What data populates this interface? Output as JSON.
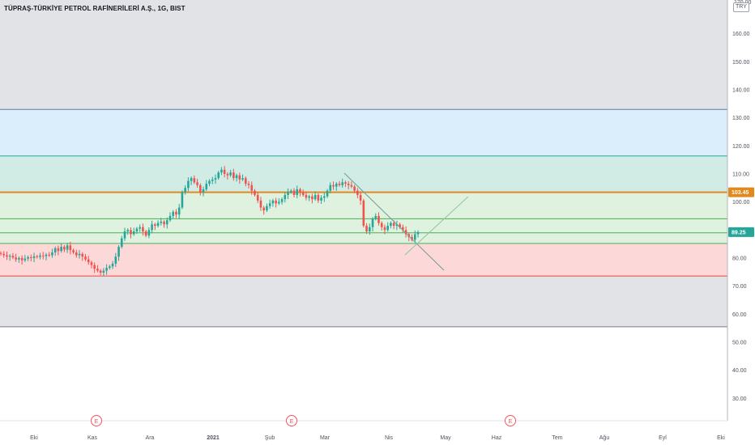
{
  "chart_data": {
    "type": "candlestick",
    "title": "TÜPRAŞ-TÜRKİYE PETROL RAFİNERİLERİ A.Ş., 1G, BIST",
    "currency": "TRY",
    "y_range": [
      22,
      172
    ],
    "y_ticks": [
      30,
      40,
      50,
      60,
      70,
      80,
      90,
      100,
      110,
      120,
      130,
      140,
      150,
      160
    ],
    "y_top_partial_label": "170.00",
    "x_labels": [
      "Eki",
      "Kas",
      "Ara",
      "2021",
      "Şub",
      "Mar",
      "Nis",
      "May",
      "Haz",
      "Tem",
      "Ağu",
      "Eyl",
      "Eki"
    ],
    "price_tags": [
      {
        "value": 103.45,
        "label": "103.45",
        "color": "#e08a1e"
      },
      {
        "value": 89.25,
        "label": "89.25",
        "color": "#26a69a"
      }
    ],
    "fib_levels": [
      55.5,
      73.6,
      85.2,
      89.0,
      94.0,
      103.45,
      116.4,
      133.0
    ],
    "zones": [
      {
        "from": 133.0,
        "to": 172,
        "color": "#e2e3e6"
      },
      {
        "from": 116.4,
        "to": 133.0,
        "color": "#dbeefc"
      },
      {
        "from": 103.45,
        "to": 116.4,
        "color": "#d1ece4"
      },
      {
        "from": 85.2,
        "to": 103.45,
        "color": "#dff2df"
      },
      {
        "from": 73.6,
        "to": 85.2,
        "color": "#fdd8d8"
      },
      {
        "from": 55.5,
        "to": 73.6,
        "color": "#e2e3e6"
      }
    ],
    "events_label": "E",
    "candles_close": [
      81.5,
      81.0,
      80.5,
      80.8,
      80.2,
      79.5,
      80.0,
      79.2,
      79.8,
      80.3,
      80.0,
      80.6,
      80.4,
      80.9,
      80.7,
      81.2,
      81.0,
      82.0,
      83.5,
      82.5,
      84.0,
      83.0,
      84.5,
      82.8,
      82.0,
      81.0,
      81.5,
      80.5,
      79.5,
      78.5,
      77.5,
      76.2,
      75.5,
      74.8,
      75.5,
      76.5,
      77.0,
      78.0,
      80.5,
      84.0,
      87.0,
      89.5,
      90.0,
      88.5,
      89.5,
      90.5,
      91.0,
      89.5,
      88.0,
      90.0,
      92.0,
      91.5,
      92.5,
      93.0,
      92.0,
      93.5,
      95.0,
      96.5,
      95.5,
      98.0,
      103.5,
      105.0,
      107.5,
      108.5,
      107.0,
      106.0,
      103.5,
      104.5,
      106.5,
      107.5,
      108.0,
      108.5,
      110.5,
      111.5,
      110.0,
      109.5,
      110.5,
      108.5,
      109.5,
      108.0,
      108.5,
      106.5,
      106.0,
      104.0,
      102.5,
      100.5,
      98.0,
      97.0,
      98.5,
      99.5,
      100.5,
      99.5,
      100.0,
      101.0,
      102.5,
      103.5,
      104.0,
      102.5,
      104.5,
      103.5,
      102.5,
      101.5,
      102.0,
      101.0,
      102.5,
      100.5,
      101.5,
      102.0,
      104.0,
      106.0,
      105.5,
      106.5,
      106.0,
      107.0,
      106.5,
      106.0,
      105.5,
      104.0,
      102.5,
      100.5,
      91.5,
      89.5,
      91.0,
      94.0,
      95.0,
      92.5,
      91.0,
      90.0,
      91.5,
      92.5,
      91.5,
      92.0,
      91.0,
      90.0,
      88.5,
      87.5,
      86.5,
      88.5,
      89.25
    ]
  },
  "ui": {
    "icon_names": [
      "earnings-event-icon",
      "currency-badge"
    ]
  }
}
